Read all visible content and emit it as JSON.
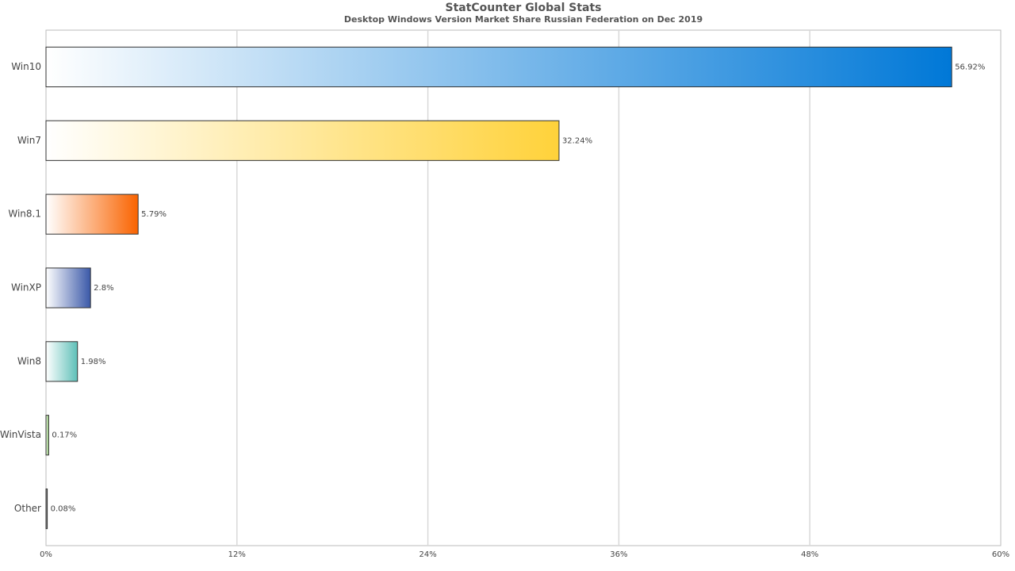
{
  "chart_data": {
    "type": "bar",
    "orientation": "horizontal",
    "title": "StatCounter Global Stats",
    "subtitle": "Desktop Windows Version Market Share Russian Federation on Dec 2019",
    "categories": [
      "Win10",
      "Win7",
      "Win8.1",
      "WinXP",
      "Win8",
      "WinVista",
      "Other"
    ],
    "values": [
      56.92,
      32.24,
      5.79,
      2.8,
      1.98,
      0.17,
      0.08
    ],
    "value_labels": [
      "56.92%",
      "32.24%",
      "5.79%",
      "2.8%",
      "1.98%",
      "0.17%",
      "0.08%"
    ],
    "colors": [
      "#0078d7",
      "#ffd23a",
      "#f96300",
      "#3a58a8",
      "#5ec0b8",
      "#7cc05a",
      "#333333"
    ],
    "xlim": [
      0,
      60
    ],
    "xticks": [
      {
        "value": 0,
        "label": "0%"
      },
      {
        "value": 12,
        "label": "12%"
      },
      {
        "value": 24,
        "label": "24%"
      },
      {
        "value": 36,
        "label": "36%"
      },
      {
        "value": 48,
        "label": "48%"
      },
      {
        "value": 60,
        "label": "60%"
      }
    ],
    "grid": true
  }
}
